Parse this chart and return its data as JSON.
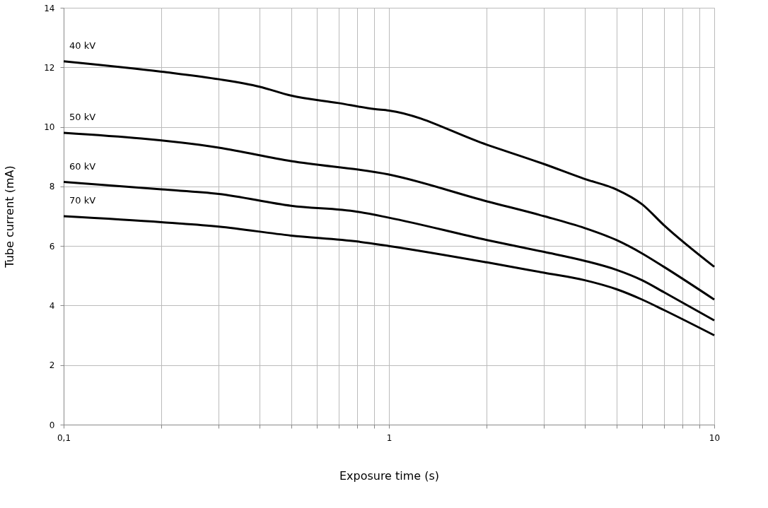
{
  "chart_data": {
    "type": "line",
    "xlabel": "Exposure time (s)",
    "ylabel": "Tube current (mA)",
    "log": "x",
    "grid": true,
    "legend": false,
    "marker": "none",
    "line_style": "solid",
    "xlim": [
      0.1,
      10
    ],
    "ylim": [
      0,
      14
    ],
    "xticks": [
      {
        "value": 0.1,
        "label": "0,1"
      },
      {
        "value": 0.2,
        "label": null
      },
      {
        "value": 0.3,
        "label": null
      },
      {
        "value": 0.4,
        "label": null
      },
      {
        "value": 0.5,
        "label": null
      },
      {
        "value": 0.6,
        "label": null
      },
      {
        "value": 0.7,
        "label": null
      },
      {
        "value": 0.8,
        "label": null
      },
      {
        "value": 0.9,
        "label": null
      },
      1,
      {
        "value": 2,
        "label": null
      },
      {
        "value": 3,
        "label": null
      },
      {
        "value": 4,
        "label": null
      },
      {
        "value": 5,
        "label": null
      },
      {
        "value": 6,
        "label": null
      },
      {
        "value": 7,
        "label": null
      },
      {
        "value": 8,
        "label": null
      },
      {
        "value": 9,
        "label": null
      },
      10
    ],
    "yticks": [
      0,
      2,
      4,
      6,
      8,
      10,
      12,
      14
    ],
    "series": [
      {
        "name": "40 kV",
        "color": "#000000",
        "x": [
          0.1,
          0.2,
          0.3,
          0.4,
          0.5,
          0.7,
          0.9,
          1,
          2,
          3,
          4,
          5,
          6,
          7,
          10
        ],
        "values": [
          12.2,
          11.85,
          11.6,
          11.35,
          11.05,
          10.8,
          10.6,
          10.55,
          9.4,
          8.75,
          8.25,
          7.9,
          7.4,
          6.7,
          5.3
        ]
      },
      {
        "name": "50 kV",
        "color": "#000000",
        "x": [
          0.1,
          0.3,
          0.5,
          1,
          2,
          3,
          4,
          5,
          6,
          7,
          10
        ],
        "values": [
          9.8,
          9.3,
          8.85,
          8.4,
          7.5,
          7.0,
          6.6,
          6.2,
          5.75,
          5.3,
          4.2
        ]
      },
      {
        "name": "60 kV",
        "color": "#000000",
        "x": [
          0.1,
          0.2,
          0.3,
          0.5,
          0.8,
          1,
          2,
          3,
          4,
          5,
          6,
          7,
          10
        ],
        "values": [
          8.15,
          7.9,
          7.75,
          7.35,
          7.15,
          6.95,
          6.2,
          5.8,
          5.5,
          5.2,
          4.85,
          4.45,
          3.5
        ]
      },
      {
        "name": "70 kV",
        "color": "#000000",
        "x": [
          0.1,
          0.2,
          0.3,
          0.5,
          0.8,
          1,
          2,
          3,
          4,
          5,
          6,
          7,
          10
        ],
        "values": [
          7.0,
          6.8,
          6.65,
          6.35,
          6.15,
          6.0,
          5.45,
          5.1,
          4.85,
          4.55,
          4.2,
          3.85,
          3.0
        ]
      }
    ]
  }
}
